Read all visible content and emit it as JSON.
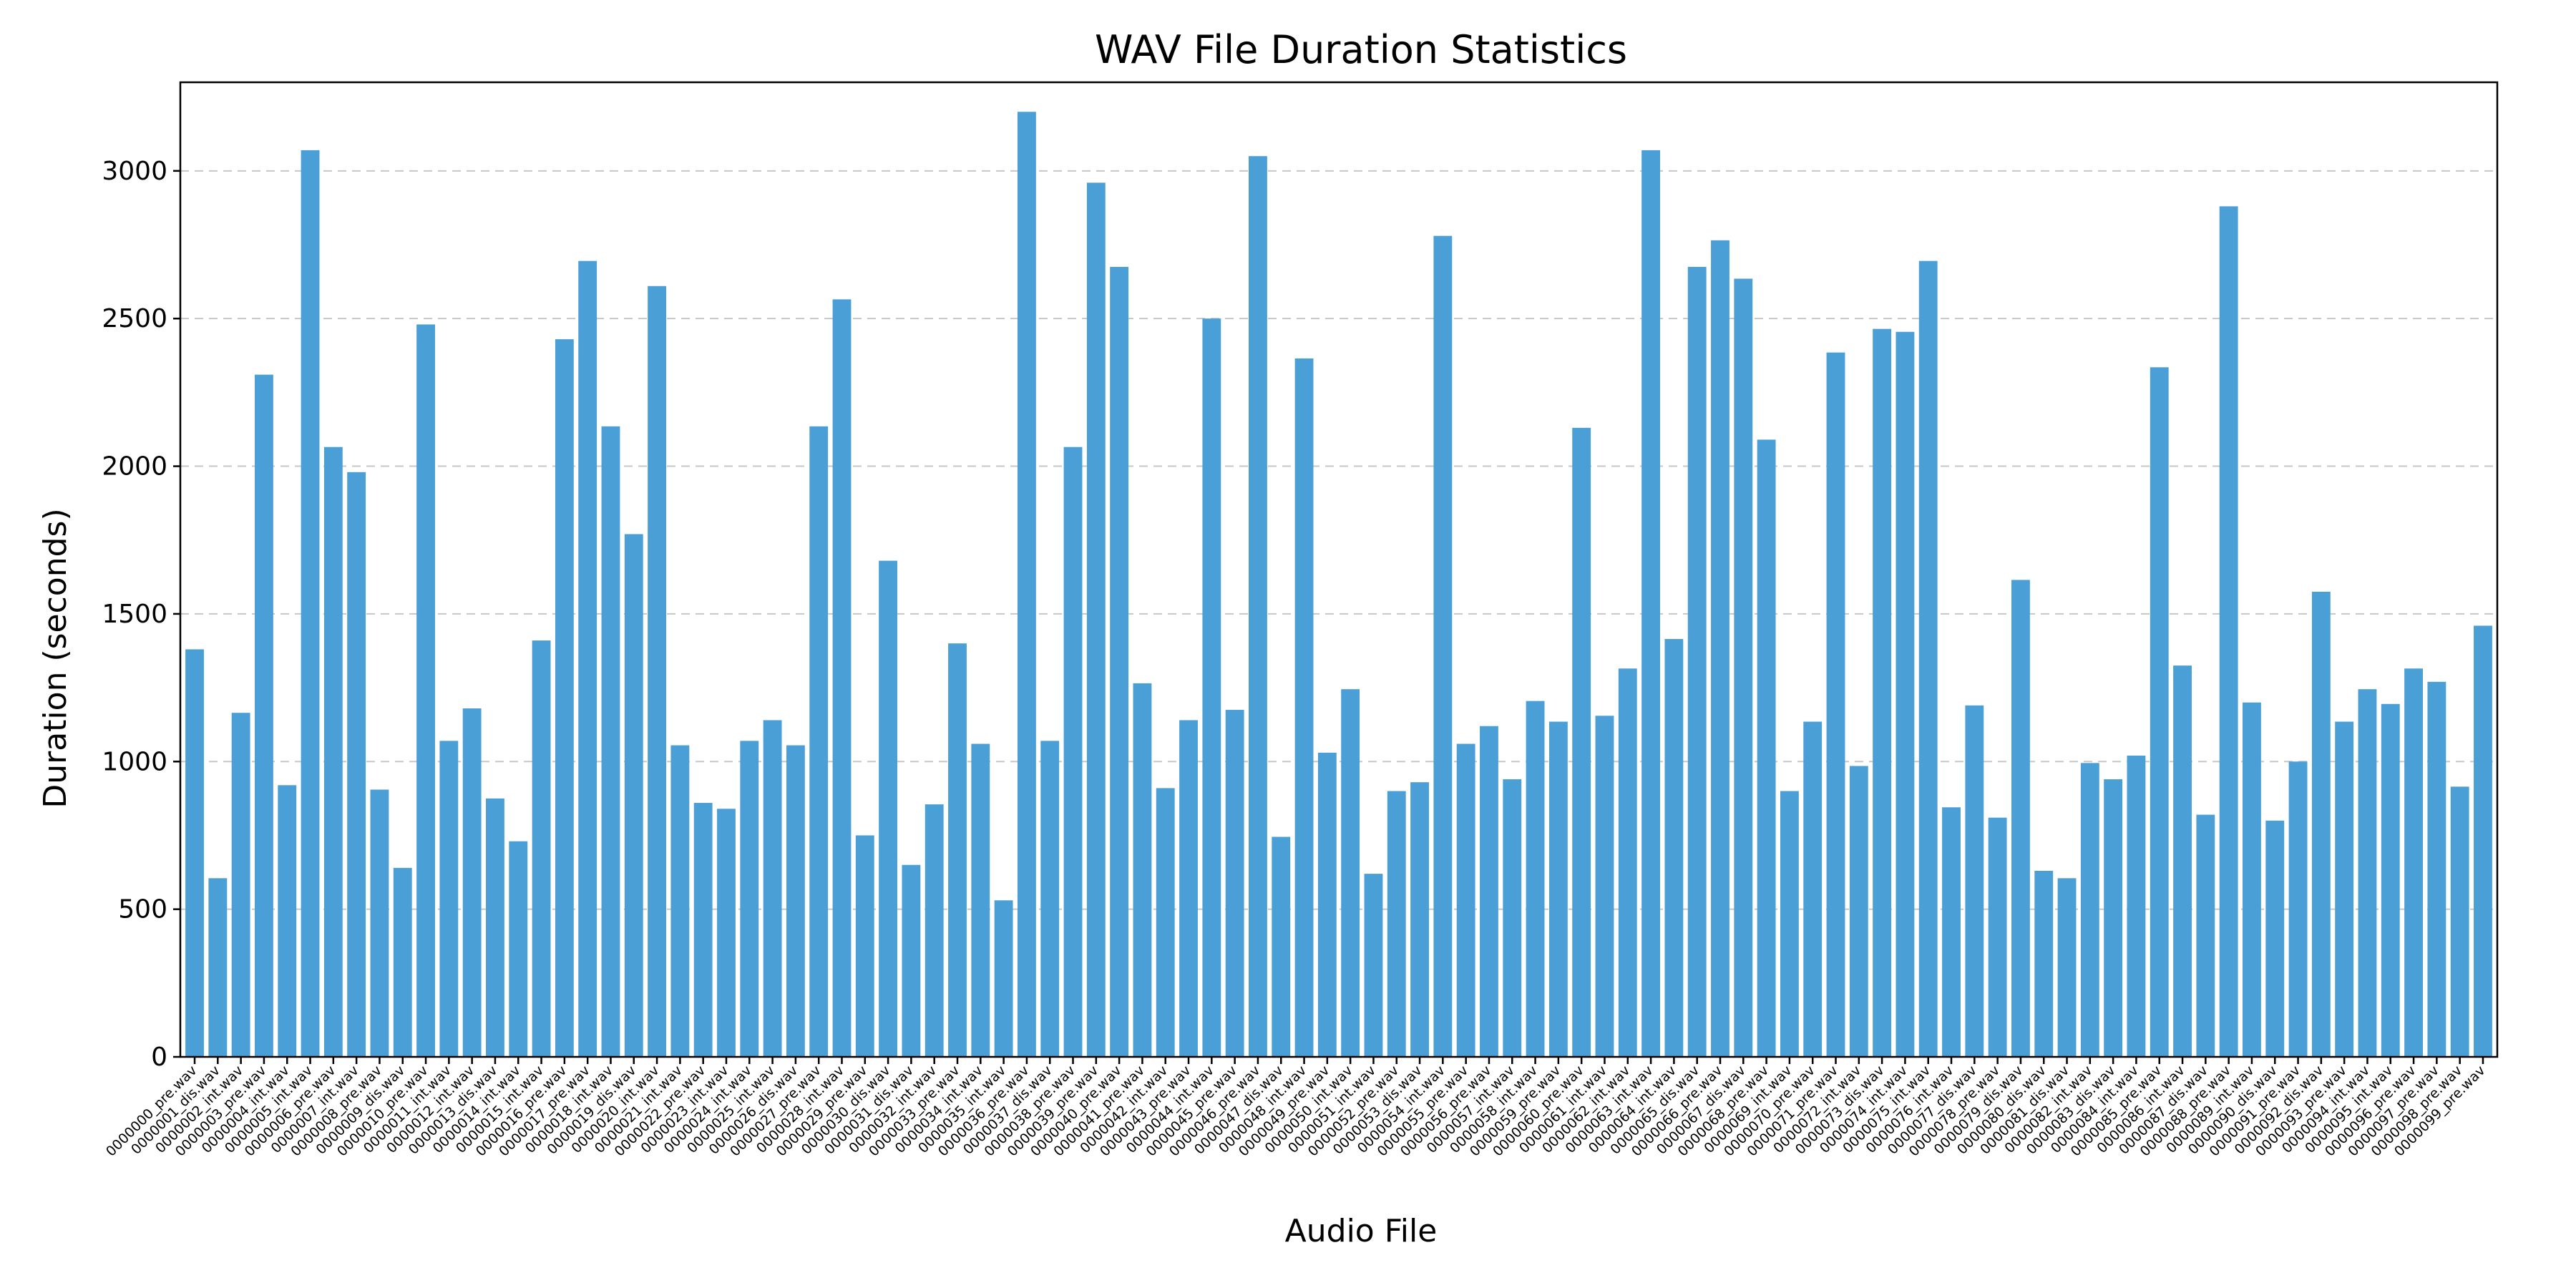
{
  "chart_data": {
    "type": "bar",
    "title": "WAV File Duration Statistics",
    "xlabel": "Audio File",
    "ylabel": "Duration (seconds)",
    "ylim": [
      0,
      3300
    ],
    "yticks": [
      0,
      500,
      1000,
      1500,
      2000,
      2500,
      3000
    ],
    "grid": "y-dashed",
    "bar_color": "#4a9fd6",
    "categories": [
      "0000000_pre.wav",
      "0000001_dis.wav",
      "0000002_int.wav",
      "0000003_pre.wav",
      "0000004_int.wav",
      "0000005_int.wav",
      "0000006_pre.wav",
      "0000007_int.wav",
      "0000008_pre.wav",
      "0000009_dis.wav",
      "0000010_pre.wav",
      "0000011_int.wav",
      "0000012_int.wav",
      "0000013_dis.wav",
      "0000014_int.wav",
      "0000015_int.wav",
      "0000016_pre.wav",
      "0000017_pre.wav",
      "0000018_int.wav",
      "0000019_dis.wav",
      "0000020_int.wav",
      "0000021_int.wav",
      "0000022_pre.wav",
      "0000023_int.wav",
      "0000024_int.wav",
      "0000025_int.wav",
      "0000026_dis.wav",
      "0000027_pre.wav",
      "0000028_int.wav",
      "0000029_pre.wav",
      "0000030_dis.wav",
      "0000031_dis.wav",
      "0000032_int.wav",
      "0000033_pre.wav",
      "0000034_int.wav",
      "0000035_int.wav",
      "0000036_pre.wav",
      "0000037_dis.wav",
      "0000038_pre.wav",
      "0000039_pre.wav",
      "0000040_pre.wav",
      "0000041_pre.wav",
      "0000042_int.wav",
      "0000043_pre.wav",
      "0000044_int.wav",
      "0000045_pre.wav",
      "0000046_pre.wav",
      "0000047_dis.wav",
      "0000048_int.wav",
      "0000049_pre.wav",
      "0000050_int.wav",
      "0000051_int.wav",
      "0000052_pre.wav",
      "0000053_dis.wav",
      "0000054_int.wav",
      "0000055_pre.wav",
      "0000056_pre.wav",
      "0000057_int.wav",
      "0000058_int.wav",
      "0000059_pre.wav",
      "0000060_pre.wav",
      "0000061_int.wav",
      "0000062_int.wav",
      "0000063_int.wav",
      "0000064_int.wav",
      "0000065_dis.wav",
      "0000066_pre.wav",
      "0000067_dis.wav",
      "0000068_pre.wav",
      "0000069_int.wav",
      "0000070_pre.wav",
      "0000071_pre.wav",
      "0000072_int.wav",
      "0000073_dis.wav",
      "0000074_int.wav",
      "0000075_int.wav",
      "0000076_int.wav",
      "0000077_dis.wav",
      "0000078_pre.wav",
      "0000079_dis.wav",
      "0000080_dis.wav",
      "0000081_dis.wav",
      "0000082_int.wav",
      "0000083_dis.wav",
      "0000084_int.wav",
      "0000085_pre.wav",
      "0000086_int.wav",
      "0000087_dis.wav",
      "0000088_pre.wav",
      "0000089_int.wav",
      "0000090_dis.wav",
      "0000091_pre.wav",
      "0000092_dis.wav",
      "0000093_pre.wav",
      "0000094_int.wav",
      "0000095_int.wav",
      "0000096_pre.wav",
      "0000097_pre.wav",
      "0000098_pre.wav",
      "0000099_pre.wav"
    ],
    "values": [
      1380,
      605,
      1165,
      2310,
      920,
      3070,
      2065,
      1980,
      905,
      640,
      2480,
      1070,
      1180,
      875,
      730,
      1410,
      2430,
      2695,
      2135,
      1770,
      2610,
      1055,
      860,
      840,
      1070,
      1140,
      1055,
      2135,
      2565,
      750,
      1680,
      650,
      855,
      1400,
      1060,
      530,
      3200,
      1070,
      2065,
      2960,
      2675,
      1265,
      910,
      1140,
      2500,
      1175,
      3050,
      745,
      2365,
      1030,
      1245,
      620,
      900,
      930,
      2780,
      1060,
      1120,
      940,
      1205,
      1135,
      2130,
      1155,
      1315,
      3070,
      1415,
      2675,
      2765,
      2635,
      2090,
      900,
      1135,
      2385,
      985,
      2465,
      2455,
      2695,
      845,
      1190,
      810,
      1615,
      630,
      605,
      995,
      940,
      1020,
      2335,
      1325,
      820,
      2880,
      1200,
      800,
      1000,
      1575,
      1135,
      1245,
      1195,
      1315,
      1270,
      915,
      1460
    ]
  }
}
